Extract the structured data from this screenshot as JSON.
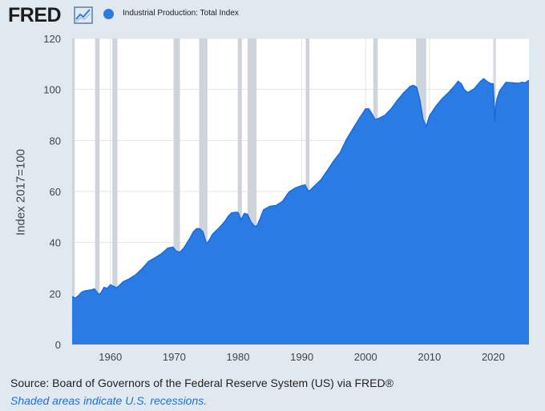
{
  "header": {
    "logo_text": "FRED",
    "legend_label": "Industrial Production: Total Index"
  },
  "colors": {
    "background": "#e1e9f0",
    "plot_background": "#ffffff",
    "series": "#2a7be4",
    "series_line": "#1a6bd8",
    "recession": "#cfd4dc",
    "note_text": "#1f6fd6"
  },
  "chart_data": {
    "type": "area",
    "title": "Industrial Production: Total Index",
    "xlabel": "",
    "ylabel": "Index 2017=100",
    "xlim": [
      1954,
      2025.6
    ],
    "ylim": [
      0,
      120
    ],
    "yticks": [
      0,
      20,
      40,
      60,
      80,
      100,
      120
    ],
    "xticks": [
      1960,
      1970,
      1980,
      1990,
      2000,
      2010,
      2020
    ],
    "grid": true,
    "recessions": [
      [
        1953.6,
        1954.4
      ],
      [
        1957.6,
        1958.3
      ],
      [
        1960.3,
        1961.1
      ],
      [
        1969.9,
        1970.9
      ],
      [
        1973.9,
        1975.2
      ],
      [
        1980.0,
        1980.6
      ],
      [
        1981.5,
        1982.9
      ],
      [
        1990.6,
        1991.2
      ],
      [
        2001.2,
        2001.9
      ],
      [
        2007.9,
        2009.5
      ],
      [
        2020.1,
        2020.4
      ]
    ],
    "series": [
      {
        "name": "Industrial Production: Total Index",
        "x": [
          1954.0,
          1954.5,
          1955.0,
          1955.5,
          1956.0,
          1957.0,
          1957.5,
          1958.2,
          1958.5,
          1959.0,
          1959.5,
          1960.0,
          1960.5,
          1961.0,
          1961.5,
          1962.0,
          1963.0,
          1964.0,
          1965.0,
          1966.0,
          1967.0,
          1968.0,
          1969.0,
          1969.8,
          1970.3,
          1970.9,
          1971.5,
          1972.0,
          1972.5,
          1973.0,
          1973.5,
          1974.0,
          1974.5,
          1975.0,
          1975.2,
          1975.7,
          1976.0,
          1977.0,
          1977.5,
          1978.0,
          1978.5,
          1979.0,
          1979.5,
          1980.0,
          1980.5,
          1980.8,
          1981.0,
          1981.5,
          1982.0,
          1982.5,
          1982.9,
          1983.5,
          1984.0,
          1985.0,
          1986.0,
          1987.0,
          1988.0,
          1989.0,
          1990.0,
          1990.5,
          1991.0,
          1991.3,
          1992.0,
          1993.0,
          1994.0,
          1995.0,
          1996.0,
          1997.0,
          1998.0,
          1999.0,
          2000.0,
          2000.5,
          2001.0,
          2001.5,
          2002.0,
          2003.0,
          2004.0,
          2005.0,
          2006.0,
          2007.0,
          2007.5,
          2008.0,
          2008.5,
          2009.0,
          2009.5,
          2010.0,
          2011.0,
          2012.0,
          2013.0,
          2014.0,
          2014.5,
          2015.0,
          2015.5,
          2016.0,
          2017.0,
          2018.0,
          2018.5,
          2019.0,
          2019.5,
          2020.0,
          2020.25,
          2020.4,
          2020.6,
          2021.0,
          2022.0,
          2023.0,
          2024.0,
          2024.5,
          2025.0,
          2025.6
        ],
        "values": [
          18.8,
          18.2,
          19.2,
          20.5,
          21.0,
          21.4,
          21.8,
          19.5,
          20.2,
          22.4,
          22.0,
          23.4,
          22.8,
          22.2,
          23.4,
          24.6,
          25.8,
          27.4,
          29.8,
          32.6,
          34.0,
          35.6,
          37.8,
          38.2,
          36.6,
          36.2,
          37.8,
          39.8,
          41.8,
          44.2,
          45.4,
          45.4,
          44.2,
          40.0,
          39.8,
          41.8,
          43.2,
          45.6,
          47.0,
          48.5,
          50.4,
          51.6,
          51.8,
          51.8,
          48.8,
          50.5,
          51.4,
          51.0,
          48.2,
          46.6,
          46.2,
          49.5,
          52.8,
          54.2,
          54.5,
          56.2,
          59.8,
          61.4,
          62.3,
          62.6,
          60.2,
          60.4,
          62.2,
          64.6,
          68.2,
          72.0,
          75.2,
          80.4,
          84.6,
          88.6,
          92.4,
          92.4,
          90.4,
          88.2,
          88.6,
          89.8,
          92.4,
          95.8,
          98.8,
          101.2,
          101.6,
          100.8,
          95.8,
          88.4,
          85.4,
          89.6,
          93.4,
          96.4,
          98.8,
          101.6,
          103.2,
          102.2,
          99.8,
          98.8,
          100.2,
          103.2,
          104.2,
          103.2,
          102.4,
          102.2,
          87.4,
          93.6,
          96.4,
          99.4,
          102.8,
          102.6,
          102.4,
          102.8,
          102.6,
          103.6
        ]
      }
    ]
  },
  "footer": {
    "source": "Source: Board of Governors of the Federal Reserve System (US) via FRED®",
    "note": "Shaded areas indicate U.S. recessions."
  }
}
